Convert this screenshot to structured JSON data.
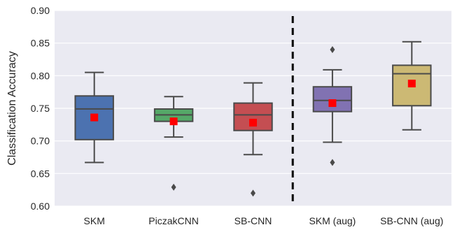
{
  "chart_data": {
    "type": "box",
    "title": "",
    "xlabel": "",
    "ylabel": "Classification Accuracy",
    "ylim": [
      0.6,
      0.9
    ],
    "yticks": [
      "0.60",
      "0.65",
      "0.70",
      "0.75",
      "0.80",
      "0.85",
      "0.90"
    ],
    "grid": true,
    "divider_after_category": 3,
    "categories": [
      "SKM",
      "PiczakCNN",
      "SB-CNN",
      "SKM (aug)",
      "SB-CNN (aug)"
    ],
    "series": [
      {
        "category": "SKM",
        "color": "#4c72b0",
        "whisker_low": 0.667,
        "q1": 0.702,
        "median": 0.749,
        "q3": 0.769,
        "whisker_high": 0.805,
        "mean": 0.736,
        "outliers": []
      },
      {
        "category": "PiczakCNN",
        "color": "#55a868",
        "whisker_low": 0.706,
        "q1": 0.73,
        "median": 0.74,
        "q3": 0.749,
        "whisker_high": 0.768,
        "mean": 0.73,
        "outliers": [
          0.629
        ]
      },
      {
        "category": "SB-CNN",
        "color": "#c44e52",
        "whisker_low": 0.679,
        "q1": 0.716,
        "median": 0.74,
        "q3": 0.758,
        "whisker_high": 0.789,
        "mean": 0.728,
        "outliers": [
          0.62
        ]
      },
      {
        "category": "SKM (aug)",
        "color": "#8172b2",
        "whisker_low": 0.698,
        "q1": 0.745,
        "median": 0.762,
        "q3": 0.783,
        "whisker_high": 0.809,
        "mean": 0.758,
        "outliers": [
          0.667,
          0.84
        ]
      },
      {
        "category": "SB-CNN (aug)",
        "color": "#ccb974",
        "whisker_low": 0.717,
        "q1": 0.754,
        "median": 0.803,
        "q3": 0.816,
        "whisker_high": 0.852,
        "mean": 0.788,
        "outliers": []
      }
    ],
    "colors": {
      "background": "#eaeaf2",
      "grid": "#ffffff",
      "box_edge": "#4a4a4a",
      "mean_marker": "#ff0000",
      "outlier": "#4a4a4a",
      "divider": "#000000"
    }
  }
}
